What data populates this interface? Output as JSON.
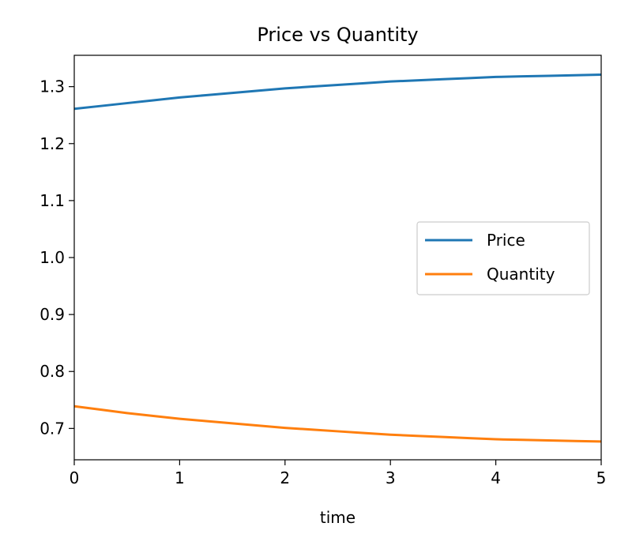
{
  "chart_data": {
    "type": "line",
    "title": "Price vs Quantity",
    "xlabel": "time",
    "ylabel": "",
    "xlim": [
      0,
      5
    ],
    "ylim": [
      0.645,
      1.355
    ],
    "xticks": [
      0,
      1,
      2,
      3,
      4,
      5
    ],
    "xtick_labels": [
      "0",
      "1",
      "2",
      "3",
      "4",
      "5"
    ],
    "yticks": [
      0.7,
      0.8,
      0.9,
      1.0,
      1.1,
      1.2,
      1.3
    ],
    "ytick_labels": [
      "0.7",
      "0.8",
      "0.9",
      "1.0",
      "1.1",
      "1.2",
      "1.3"
    ],
    "grid": false,
    "legend_position": "center-right",
    "x": [
      0,
      0.25,
      0.5,
      0.75,
      1.0,
      1.25,
      1.5,
      1.75,
      2.0,
      2.25,
      2.5,
      2.75,
      3.0,
      3.25,
      3.5,
      3.75,
      4.0,
      4.25,
      4.5,
      4.75,
      5.0
    ],
    "series": [
      {
        "name": "Price",
        "color": "#1f77b4",
        "values": [
          1.261,
          1.266,
          1.271,
          1.276,
          1.281,
          1.285,
          1.289,
          1.293,
          1.297,
          1.3,
          1.303,
          1.306,
          1.309,
          1.311,
          1.313,
          1.315,
          1.317,
          1.318,
          1.319,
          1.32,
          1.321
        ]
      },
      {
        "name": "Quantity",
        "color": "#ff7f0e",
        "values": [
          0.739,
          0.733,
          0.727,
          0.722,
          0.717,
          0.713,
          0.709,
          0.705,
          0.701,
          0.698,
          0.695,
          0.692,
          0.689,
          0.687,
          0.685,
          0.683,
          0.681,
          0.68,
          0.679,
          0.678,
          0.677
        ]
      }
    ]
  }
}
